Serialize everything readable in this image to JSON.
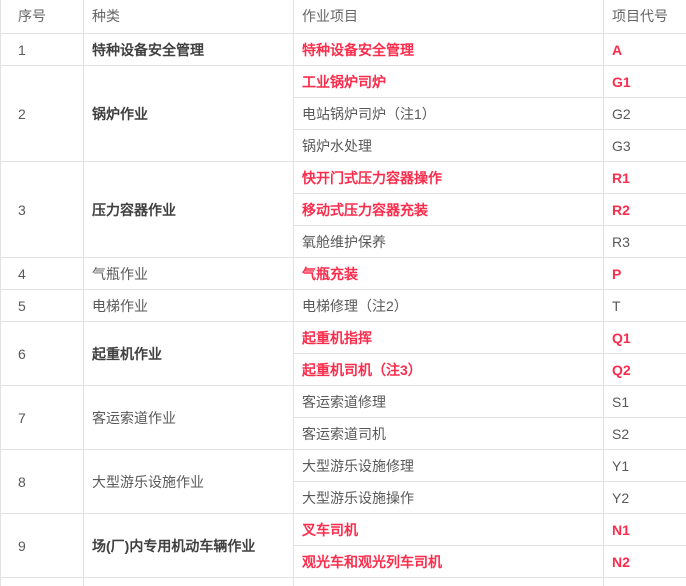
{
  "table": {
    "columns": [
      {
        "label": "序号"
      },
      {
        "label": "种类"
      },
      {
        "label": "作业项目"
      },
      {
        "label": "项目代号"
      }
    ],
    "groups": [
      {
        "index": "1",
        "category": "特种设备安全管理",
        "category_bold": true,
        "items": [
          {
            "project": "特种设备安全管理",
            "code": "A",
            "highlight": true
          }
        ]
      },
      {
        "index": "2",
        "category": "锅炉作业",
        "category_bold": true,
        "items": [
          {
            "project": "工业锅炉司炉",
            "code": "G1",
            "highlight": true
          },
          {
            "project": "电站锅炉司炉（注1）",
            "code": "G2",
            "highlight": false
          },
          {
            "project": "锅炉水处理",
            "code": "G3",
            "highlight": false
          }
        ]
      },
      {
        "index": "3",
        "category": "压力容器作业",
        "category_bold": true,
        "items": [
          {
            "project": "快开门式压力容器操作",
            "code": "R1",
            "highlight": true
          },
          {
            "project": "移动式压力容器充装",
            "code": "R2",
            "highlight": true
          },
          {
            "project": "氧舱维护保养",
            "code": "R3",
            "highlight": false
          }
        ]
      },
      {
        "index": "4",
        "category": "气瓶作业",
        "category_bold": false,
        "items": [
          {
            "project": "气瓶充装",
            "code": "P",
            "highlight": true
          }
        ]
      },
      {
        "index": "5",
        "category": "电梯作业",
        "category_bold": false,
        "items": [
          {
            "project": "电梯修理（注2）",
            "code": "T",
            "highlight": false
          }
        ]
      },
      {
        "index": "6",
        "category": "起重机作业",
        "category_bold": true,
        "items": [
          {
            "project": "起重机指挥",
            "code": "Q1",
            "highlight": true
          },
          {
            "project": "起重机司机（注3）",
            "code": "Q2",
            "highlight": true
          }
        ]
      },
      {
        "index": "7",
        "category": "客运索道作业",
        "category_bold": false,
        "items": [
          {
            "project": "客运索道修理",
            "code": "S1",
            "highlight": false
          },
          {
            "project": "客运索道司机",
            "code": "S2",
            "highlight": false
          }
        ]
      },
      {
        "index": "8",
        "category": "大型游乐设施作业",
        "category_bold": false,
        "items": [
          {
            "project": "大型游乐设施修理",
            "code": "Y1",
            "highlight": false
          },
          {
            "project": "大型游乐设施操作",
            "code": "Y2",
            "highlight": false
          }
        ]
      },
      {
        "index": "9",
        "category": "场(厂)内专用机动车辆作业",
        "category_bold": true,
        "items": [
          {
            "project": "叉车司机",
            "code": "N1",
            "highlight": true
          },
          {
            "project": "观光车和观光列车司机",
            "code": "N2",
            "highlight": true
          }
        ]
      }
    ],
    "colors": {
      "highlight_red": "#fb2c4c",
      "body_text": "#595959",
      "bold_text": "#404040",
      "header_text": "#666666",
      "border": "#e2e2e2",
      "background": "#ffffff"
    }
  }
}
